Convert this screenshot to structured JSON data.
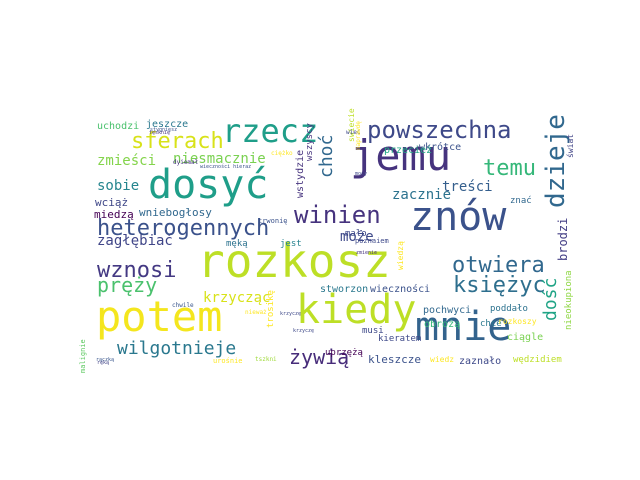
{
  "palette": {
    "dark_purple": "#440154",
    "indigo": "#46337e",
    "blue": "#365c8d",
    "teal_blue": "#277f8e",
    "teal": "#1fa187",
    "green": "#4ac16d",
    "lime": "#a0da39",
    "yellow": "#fde725"
  },
  "words": [
    {
      "text": "rozkosz",
      "color": "#bddf26"
    },
    {
      "text": "kiedy",
      "color": "#bddf26"
    },
    {
      "text": "potem",
      "color": "#f4e61e"
    },
    {
      "text": "mnie",
      "color": "#33638d"
    },
    {
      "text": "znów",
      "color": "#3b528b"
    },
    {
      "text": "jemu",
      "color": "#46337e"
    },
    {
      "text": "dosyć",
      "color": "#1f9e89"
    },
    {
      "text": "rzecz",
      "color": "#1f9e89"
    },
    {
      "text": "powszechna",
      "color": "#3e4989"
    },
    {
      "text": "dzieje",
      "color": "#31688e"
    },
    {
      "text": "heterogennych",
      "color": "#3b528b"
    },
    {
      "text": "otwiera",
      "color": "#31688e"
    },
    {
      "text": "księżyc",
      "color": "#2e6f8e"
    },
    {
      "text": "winien",
      "color": "#46337e"
    },
    {
      "text": "temu",
      "color": "#35b779"
    },
    {
      "text": "wznosi",
      "color": "#443983"
    },
    {
      "text": "sferach",
      "color": "#d8e219"
    },
    {
      "text": "wilgotnieje",
      "color": "#2a788e"
    },
    {
      "text": "żywią",
      "color": "#472c7a"
    },
    {
      "text": "pręży",
      "color": "#4ac16d"
    },
    {
      "text": "niesmacznie",
      "color": "#7ad151"
    },
    {
      "text": "zmieści",
      "color": "#84d44b"
    },
    {
      "text": "dość",
      "color": "#20a486"
    },
    {
      "text": "choć",
      "color": "#31688e"
    },
    {
      "text": "zacznie",
      "color": "#2c728e"
    },
    {
      "text": "treści",
      "color": "#355f8d"
    },
    {
      "text": "sobie",
      "color": "#25858e"
    },
    {
      "text": "zagłębiać",
      "color": "#404688"
    },
    {
      "text": "krzycząc",
      "color": "#d8e219"
    },
    {
      "text": "może",
      "color": "#3e4989"
    },
    {
      "text": "wciąż",
      "color": "#3f4788"
    },
    {
      "text": "miedzą",
      "color": "#440154"
    },
    {
      "text": "wniebogłosy",
      "color": "#31688e"
    },
    {
      "text": "uchodzi",
      "color": "#4ac16d"
    },
    {
      "text": "jeszcze",
      "color": "#2a788e"
    },
    {
      "text": "wkrótce",
      "color": "#3b528b"
    },
    {
      "text": "przecież",
      "color": "#22a884"
    },
    {
      "text": "poddało",
      "color": "#2c728e"
    },
    {
      "text": "chce",
      "color": "#2a788e"
    },
    {
      "text": "rozkoszy",
      "color": "#fde725"
    },
    {
      "text": "obrożą",
      "color": "#35b779"
    },
    {
      "text": "stworzon",
      "color": "#2a788e"
    },
    {
      "text": "wieczności",
      "color": "#3b528b"
    },
    {
      "text": "pochwyci",
      "color": "#31688e"
    },
    {
      "text": "ciągle",
      "color": "#7ad151"
    },
    {
      "text": "kleszcze",
      "color": "#3b528b"
    },
    {
      "text": "zaznało",
      "color": "#3e4989"
    },
    {
      "text": "wędzidiem",
      "color": "#bddf26"
    },
    {
      "text": "kieratem",
      "color": "#3e4989"
    },
    {
      "text": "musi",
      "color": "#3e4989"
    },
    {
      "text": "uprzężą",
      "color": "#440154"
    },
    {
      "text": "wiedz",
      "color": "#fde725"
    },
    {
      "text": "mało",
      "color": "#3e4989"
    },
    {
      "text": "jest",
      "color": "#26828e"
    },
    {
      "text": "męką",
      "color": "#2c728e"
    },
    {
      "text": "poznaiem",
      "color": "#3e4989"
    },
    {
      "text": "znać",
      "color": "#31688e"
    },
    {
      "text": "wszyscy",
      "color": "#46337e"
    },
    {
      "text": "wstydzie",
      "color": "#46337e"
    },
    {
      "text": "swiecie",
      "color": "#bddf26"
    },
    {
      "text": "trosikę",
      "color": "#fde725"
    },
    {
      "text": "brodzi",
      "color": "#433e85"
    },
    {
      "text": "nieokupiona",
      "color": "#8fd744"
    },
    {
      "text": "świat",
      "color": "#414487"
    },
    {
      "text": "wiedzą",
      "color": "#fde725"
    },
    {
      "text": "malignie",
      "color": "#5ec962"
    },
    {
      "text": "chwile",
      "color": "#39568c"
    },
    {
      "text": "trwonię",
      "color": "#3b528b"
    },
    {
      "text": "dyiemał",
      "color": "#46337e"
    },
    {
      "text": "ciężko",
      "color": "#fde725"
    },
    {
      "text": "nieważ",
      "color": "#fde725"
    },
    {
      "text": "wieczności hieraz",
      "color": "#3b528b"
    },
    {
      "text": "krzyczę",
      "color": "#3e4989"
    },
    {
      "text": "rączką",
      "color": "#39568c"
    },
    {
      "text": "tęsknię",
      "color": "#46337e"
    },
    {
      "text": "wiec",
      "color": "#3e4989"
    },
    {
      "text": "mocy",
      "color": "#3e4989"
    },
    {
      "text": "naprawdę",
      "color": "#fde725"
    },
    {
      "text": "zmienie",
      "color": "#46337e"
    },
    {
      "text": "urośnie",
      "color": "#fde725"
    },
    {
      "text": "ręką",
      "color": "#414487"
    },
    {
      "text": "tszkni",
      "color": "#9fda3a"
    },
    {
      "text": "stygnięsz",
      "color": "#3b528b"
    },
    {
      "text": "krzyczę",
      "color": "#3e4989"
    }
  ]
}
